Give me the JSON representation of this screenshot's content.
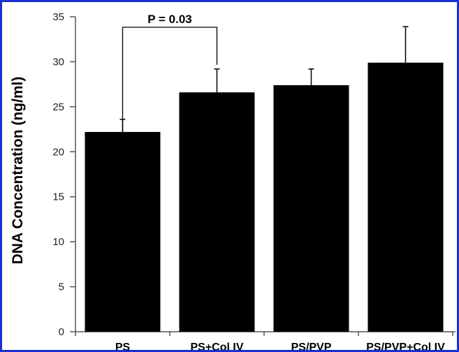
{
  "chart_data": {
    "type": "bar",
    "categories": [
      "PS",
      "PS+Col IV",
      "PS/PVP",
      "PS/PVP+Col IV"
    ],
    "values": [
      22.2,
      26.6,
      27.4,
      29.9
    ],
    "error": [
      1.4,
      2.6,
      1.8,
      4.0
    ],
    "ylabel": "DNA Concentration (ng/ml)",
    "xlabel": "",
    "ylim": [
      0,
      35
    ],
    "yticks": [
      0,
      5,
      10,
      15,
      20,
      25,
      30,
      35
    ],
    "bar_color": "#000000",
    "grid": false,
    "annotation": {
      "text": "P = 0.03",
      "from_category": "PS",
      "to_category": "PS+Col IV"
    }
  },
  "colors": {
    "frame": "#1a2fd0",
    "bars": "#000000",
    "axis": "#555555"
  }
}
